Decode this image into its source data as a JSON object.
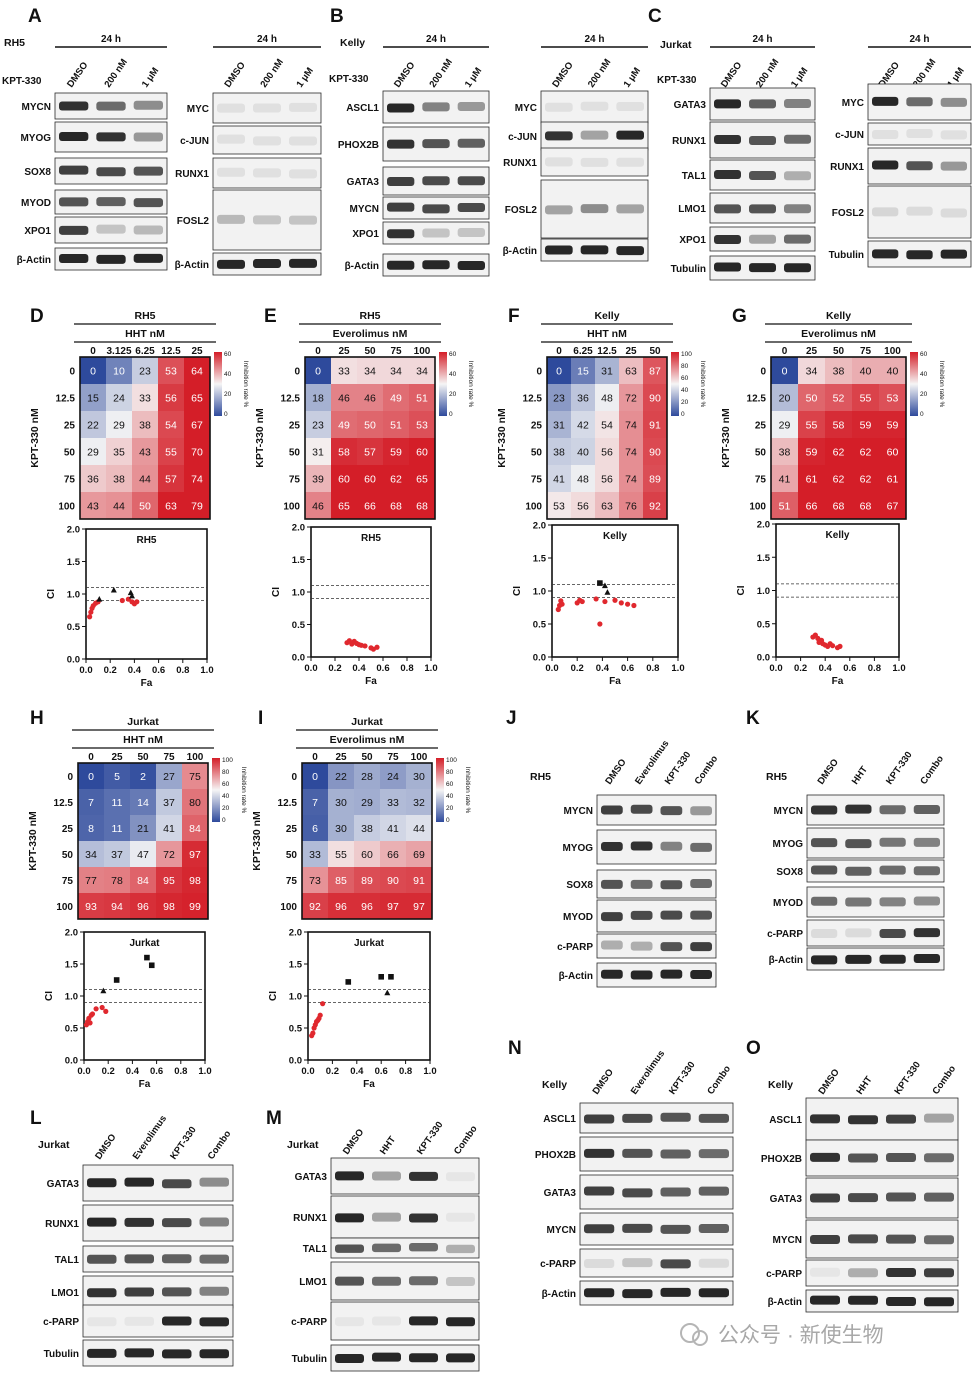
{
  "panel_letters": {
    "A": "A",
    "B": "B",
    "C": "C",
    "D": "D",
    "E": "E",
    "F": "F",
    "G": "G",
    "H": "H",
    "I": "I",
    "J": "J",
    "K": "K",
    "L": "L",
    "M": "M",
    "N": "N",
    "O": "O"
  },
  "common": {
    "kpt": "KPT-330",
    "time": "24 h",
    "conc": [
      "DMSO",
      "200 nM",
      "1 μM"
    ]
  },
  "blots": {
    "A1": {
      "cell": "RH5",
      "rows": [
        "MYCN",
        "MYOG",
        "SOX8",
        "MYOD",
        "XPO1",
        "β-Actin"
      ]
    },
    "A2": {
      "rows": [
        "MYC",
        "c-JUN",
        "RUNX1",
        "FOSL2",
        "β-Actin"
      ]
    },
    "B1": {
      "cell": "Kelly",
      "rows": [
        "ASCL1",
        "PHOX2B",
        "GATA3",
        "MYCN",
        "XPO1",
        "β-Actin"
      ]
    },
    "B2": {
      "rows": [
        "MYC",
        "c-JUN",
        "RUNX1",
        "FOSL2",
        "β-Actin"
      ]
    },
    "C1": {
      "cell": "Jurkat",
      "rows": [
        "GATA3",
        "RUNX1",
        "TAL1",
        "LMO1",
        "XPO1",
        "Tubulin"
      ]
    },
    "C2": {
      "rows": [
        "MYC",
        "c-JUN",
        "RUNX1",
        "FOSL2",
        "Tubulin"
      ]
    },
    "J": {
      "cell": "RH5",
      "cols": [
        "DMSO",
        "Everolimus",
        "KPT-330",
        "Combo"
      ],
      "rows": [
        "MYCN",
        "MYOG",
        "SOX8",
        "MYOD",
        "c-PARP",
        "β-Actin"
      ]
    },
    "K": {
      "cell": "RH5",
      "cols": [
        "DMSO",
        "HHT",
        "KPT-330",
        "Combo"
      ],
      "rows": [
        "MYCN",
        "MYOG",
        "SOX8",
        "MYOD",
        "c-PARP",
        "β-Actin"
      ]
    },
    "L": {
      "cell": "Jurkat",
      "cols": [
        "DMSO",
        "Everolimus",
        "KPT-330",
        "Combo"
      ],
      "rows": [
        "GATA3",
        "RUNX1",
        "TAL1",
        "LMO1",
        "c-PARP",
        "Tubulin"
      ]
    },
    "M": {
      "cell": "Jurkat",
      "cols": [
        "DMSO",
        "HHT",
        "KPT-330",
        "Combo"
      ],
      "rows": [
        "GATA3",
        "RUNX1",
        "TAL1",
        "LMO1",
        "c-PARP",
        "Tubulin"
      ]
    },
    "N": {
      "cell": "Kelly",
      "cols": [
        "DMSO",
        "Everolimus",
        "KPT-330",
        "Combo"
      ],
      "rows": [
        "ASCL1",
        "PHOX2B",
        "GATA3",
        "MYCN",
        "c-PARP",
        "β-Actin"
      ]
    },
    "O": {
      "cell": "Kelly",
      "cols": [
        "DMSO",
        "HHT",
        "KPT-330",
        "Combo"
      ],
      "rows": [
        "ASCL1",
        "PHOX2B",
        "GATA3",
        "MYCN",
        "c-PARP",
        "β-Actin"
      ]
    }
  },
  "chart_data": [
    {
      "id": "D",
      "type": "heatmap",
      "title": "RH5",
      "xlabel": "HHT nM",
      "ylabel": "KPT-330 nM",
      "legend_label": "Inhibition rate %",
      "scale": [
        0,
        60
      ],
      "legend_ticks": [
        "60",
        "40",
        "20",
        "0"
      ],
      "x": [
        "0",
        "3.125",
        "6.25",
        "12.5",
        "25"
      ],
      "y": [
        "0",
        "12.5",
        "25",
        "50",
        "75",
        "100"
      ],
      "values": [
        [
          0,
          10,
          23,
          53,
          64
        ],
        [
          15,
          24,
          33,
          56,
          65
        ],
        [
          22,
          29,
          38,
          54,
          67
        ],
        [
          29,
          35,
          43,
          55,
          70
        ],
        [
          36,
          38,
          44,
          57,
          74
        ],
        [
          43,
          44,
          50,
          63,
          79
        ]
      ]
    },
    {
      "id": "E",
      "type": "heatmap",
      "title": "RH5",
      "xlabel": "Everolimus nM",
      "ylabel": "KPT-330 nM",
      "legend_label": "Inhibition rate %",
      "scale": [
        0,
        60
      ],
      "legend_ticks": [
        "60",
        "40",
        "20",
        "0"
      ],
      "x": [
        "0",
        "25",
        "50",
        "75",
        "100"
      ],
      "y": [
        "0",
        "12.5",
        "25",
        "50",
        "75",
        "100"
      ],
      "values": [
        [
          0,
          33,
          34,
          34,
          34
        ],
        [
          18,
          46,
          46,
          49,
          51
        ],
        [
          23,
          49,
          50,
          51,
          53
        ],
        [
          31,
          58,
          57,
          59,
          60
        ],
        [
          39,
          60,
          60,
          62,
          65
        ],
        [
          46,
          65,
          66,
          68,
          68
        ]
      ]
    },
    {
      "id": "F",
      "type": "heatmap",
      "title": "Kelly",
      "xlabel": "HHT nM",
      "ylabel": "KPT-330 nM",
      "legend_label": "Inhibition rate %",
      "scale": [
        0,
        100
      ],
      "legend_ticks": [
        "100",
        "80",
        "60",
        "40",
        "20",
        "0"
      ],
      "x": [
        "0",
        "6.25",
        "12.5",
        "25",
        "50"
      ],
      "y": [
        "0",
        "12.5",
        "25",
        "50",
        "75",
        "100"
      ],
      "values": [
        [
          0,
          15,
          31,
          63,
          87
        ],
        [
          23,
          36,
          48,
          72,
          90
        ],
        [
          31,
          42,
          54,
          74,
          91
        ],
        [
          38,
          40,
          56,
          74,
          90
        ],
        [
          41,
          48,
          56,
          74,
          89
        ],
        [
          53,
          56,
          63,
          76,
          92
        ]
      ]
    },
    {
      "id": "G",
      "type": "heatmap",
      "title": "Kelly",
      "xlabel": "Everolimus nM",
      "ylabel": "KPT-330 nM",
      "legend_label": "Inhibition rate %",
      "scale": [
        0,
        60
      ],
      "legend_ticks": [
        "60",
        "40",
        "20",
        "0"
      ],
      "x": [
        "0",
        "25",
        "50",
        "75",
        "100"
      ],
      "y": [
        "0",
        "12.5",
        "25",
        "50",
        "75",
        "100"
      ],
      "values": [
        [
          0,
          34,
          38,
          40,
          40
        ],
        [
          20,
          50,
          52,
          55,
          53
        ],
        [
          29,
          55,
          58,
          59,
          59
        ],
        [
          38,
          59,
          62,
          62,
          60
        ],
        [
          41,
          61,
          62,
          62,
          61
        ],
        [
          51,
          66,
          68,
          68,
          67
        ]
      ]
    },
    {
      "id": "H",
      "type": "heatmap",
      "title": "Jurkat",
      "xlabel": "HHT nM",
      "ylabel": "KPT-330 nM",
      "legend_label": "Inhibition rate %",
      "scale": [
        0,
        100
      ],
      "legend_ticks": [
        "100",
        "80",
        "60",
        "40",
        "20",
        "0"
      ],
      "x": [
        "0",
        "25",
        "50",
        "75",
        "100"
      ],
      "y": [
        "0",
        "12.5",
        "25",
        "50",
        "75",
        "100"
      ],
      "values": [
        [
          0,
          5,
          2,
          27,
          75
        ],
        [
          7,
          11,
          14,
          37,
          80
        ],
        [
          8,
          11,
          21,
          41,
          84
        ],
        [
          34,
          37,
          47,
          72,
          97
        ],
        [
          77,
          78,
          84,
          95,
          98
        ],
        [
          93,
          94,
          96,
          98,
          99
        ]
      ]
    },
    {
      "id": "I",
      "type": "heatmap",
      "title": "Jurkat",
      "xlabel": "Everolimus nM",
      "ylabel": "KPT-330 nM",
      "legend_label": "Inhibition rate %",
      "scale": [
        0,
        100
      ],
      "legend_ticks": [
        "100",
        "80",
        "60",
        "40",
        "20",
        "0"
      ],
      "x": [
        "0",
        "25",
        "50",
        "75",
        "100"
      ],
      "y": [
        "0",
        "12.5",
        "25",
        "50",
        "75",
        "100"
      ],
      "values": [
        [
          0,
          22,
          28,
          24,
          30
        ],
        [
          7,
          30,
          29,
          33,
          32
        ],
        [
          6,
          30,
          38,
          41,
          44
        ],
        [
          33,
          55,
          60,
          66,
          69
        ],
        [
          73,
          85,
          89,
          90,
          91
        ],
        [
          92,
          96,
          96,
          97,
          97
        ]
      ]
    },
    {
      "id": "D_ci",
      "type": "scatter",
      "title": "RH5",
      "xlabel": "Fa",
      "ylabel": "CI",
      "xlim": [
        0,
        1
      ],
      "ylim": [
        0,
        2
      ],
      "xticks": [
        "0.0",
        "0.2",
        "0.4",
        "0.6",
        "0.8",
        "1.0"
      ],
      "yticks": [
        "0.0",
        "0.5",
        "1.0",
        "1.5",
        "2.0"
      ],
      "hlines": [
        0.9,
        1.1
      ],
      "series": [
        {
          "name": "circle",
          "points": [
            [
              0.03,
              0.65
            ],
            [
              0.04,
              0.72
            ],
            [
              0.05,
              0.78
            ],
            [
              0.06,
              0.82
            ],
            [
              0.08,
              0.86
            ],
            [
              0.1,
              0.88
            ],
            [
              0.3,
              0.9
            ],
            [
              0.35,
              0.92
            ],
            [
              0.38,
              0.88
            ],
            [
              0.4,
              0.85
            ],
            [
              0.42,
              0.88
            ]
          ]
        },
        {
          "name": "triangle",
          "points": [
            [
              0.11,
              0.92
            ],
            [
              0.23,
              1.06
            ],
            [
              0.37,
              1.02
            ],
            [
              0.38,
              0.97
            ]
          ]
        }
      ]
    },
    {
      "id": "E_ci",
      "type": "scatter",
      "title": "RH5",
      "xlabel": "Fa",
      "ylabel": "CI",
      "xlim": [
        0,
        1
      ],
      "ylim": [
        0,
        2
      ],
      "xticks": [
        "0.0",
        "0.2",
        "0.4",
        "0.6",
        "0.8",
        "1.0"
      ],
      "yticks": [
        "0.0",
        "0.5",
        "1.0",
        "1.5",
        "2.0"
      ],
      "hlines": [
        0.9,
        1.1
      ],
      "series": [
        {
          "name": "circle",
          "points": [
            [
              0.3,
              0.22
            ],
            [
              0.32,
              0.25
            ],
            [
              0.34,
              0.2
            ],
            [
              0.36,
              0.24
            ],
            [
              0.38,
              0.21
            ],
            [
              0.4,
              0.19
            ],
            [
              0.42,
              0.18
            ],
            [
              0.45,
              0.17
            ],
            [
              0.5,
              0.14
            ],
            [
              0.52,
              0.12
            ],
            [
              0.55,
              0.15
            ]
          ]
        }
      ]
    },
    {
      "id": "F_ci",
      "type": "scatter",
      "title": "Kelly",
      "xlabel": "Fa",
      "ylabel": "CI",
      "xlim": [
        0,
        1
      ],
      "ylim": [
        0,
        2
      ],
      "xticks": [
        "0.0",
        "0.2",
        "0.4",
        "0.6",
        "0.8",
        "1.0"
      ],
      "yticks": [
        "0.0",
        "0.5",
        "1.0",
        "1.5",
        "2.0"
      ],
      "hlines": [
        0.9,
        1.1
      ],
      "series": [
        {
          "name": "circle",
          "points": [
            [
              0.05,
              0.72
            ],
            [
              0.06,
              0.78
            ],
            [
              0.07,
              0.85
            ],
            [
              0.08,
              0.8
            ],
            [
              0.2,
              0.82
            ],
            [
              0.22,
              0.86
            ],
            [
              0.24,
              0.84
            ],
            [
              0.35,
              0.88
            ],
            [
              0.38,
              0.5
            ],
            [
              0.42,
              0.84
            ],
            [
              0.5,
              0.86
            ],
            [
              0.55,
              0.82
            ],
            [
              0.6,
              0.8
            ],
            [
              0.65,
              0.78
            ]
          ]
        },
        {
          "name": "triangle",
          "points": [
            [
              0.42,
              1.08
            ],
            [
              0.44,
              0.98
            ]
          ]
        },
        {
          "name": "square",
          "points": [
            [
              0.38,
              1.12
            ]
          ]
        }
      ]
    },
    {
      "id": "G_ci",
      "type": "scatter",
      "title": "Kelly",
      "xlabel": "Fa",
      "ylabel": "CI",
      "xlim": [
        0,
        1
      ],
      "ylim": [
        0,
        2
      ],
      "xticks": [
        "0.0",
        "0.2",
        "0.4",
        "0.6",
        "0.8",
        "1.0"
      ],
      "yticks": [
        "0.0",
        "0.5",
        "1.0",
        "1.5",
        "2.0"
      ],
      "hlines": [
        0.9,
        1.1
      ],
      "series": [
        {
          "name": "circle",
          "points": [
            [
              0.3,
              0.3
            ],
            [
              0.32,
              0.33
            ],
            [
              0.34,
              0.28
            ],
            [
              0.35,
              0.22
            ],
            [
              0.37,
              0.25
            ],
            [
              0.38,
              0.2
            ],
            [
              0.4,
              0.18
            ],
            [
              0.42,
              0.16
            ],
            [
              0.44,
              0.2
            ],
            [
              0.46,
              0.17
            ],
            [
              0.5,
              0.14
            ],
            [
              0.52,
              0.16
            ]
          ]
        }
      ]
    },
    {
      "id": "H_ci",
      "type": "scatter",
      "title": "Jurkat",
      "xlabel": "Fa",
      "ylabel": "CI",
      "xlim": [
        0,
        1
      ],
      "ylim": [
        0,
        2
      ],
      "xticks": [
        "0.0",
        "0.2",
        "0.4",
        "0.6",
        "0.8",
        "1.0"
      ],
      "yticks": [
        "0.0",
        "0.5",
        "1.0",
        "1.5",
        "2.0"
      ],
      "hlines": [
        0.9,
        1.1
      ],
      "series": [
        {
          "name": "circle",
          "points": [
            [
              0.02,
              0.55
            ],
            [
              0.03,
              0.6
            ],
            [
              0.04,
              0.65
            ],
            [
              0.05,
              0.58
            ],
            [
              0.06,
              0.7
            ],
            [
              0.07,
              0.72
            ],
            [
              0.1,
              0.8
            ],
            [
              0.15,
              0.82
            ],
            [
              0.18,
              0.76
            ]
          ]
        },
        {
          "name": "triangle",
          "points": [
            [
              0.16,
              1.08
            ]
          ]
        },
        {
          "name": "square",
          "points": [
            [
              0.27,
              1.25
            ],
            [
              0.52,
              1.6
            ],
            [
              0.56,
              1.48
            ]
          ]
        }
      ]
    },
    {
      "id": "I_ci",
      "type": "scatter",
      "title": "Jurkat",
      "xlabel": "Fa",
      "ylabel": "CI",
      "xlim": [
        0,
        1
      ],
      "ylim": [
        0,
        2
      ],
      "xticks": [
        "0.0",
        "0.2",
        "0.4",
        "0.6",
        "0.8",
        "1.0"
      ],
      "yticks": [
        "0.0",
        "0.5",
        "1.0",
        "1.5",
        "2.0"
      ],
      "hlines": [
        0.9,
        1.1
      ],
      "series": [
        {
          "name": "circle",
          "points": [
            [
              0.03,
              0.38
            ],
            [
              0.04,
              0.42
            ],
            [
              0.05,
              0.5
            ],
            [
              0.06,
              0.55
            ],
            [
              0.07,
              0.6
            ],
            [
              0.08,
              0.62
            ],
            [
              0.09,
              0.65
            ],
            [
              0.1,
              0.7
            ],
            [
              0.12,
              0.88
            ]
          ]
        },
        {
          "name": "triangle",
          "points": [
            [
              0.65,
              1.05
            ]
          ]
        },
        {
          "name": "square",
          "points": [
            [
              0.33,
              1.22
            ],
            [
              0.6,
              1.3
            ],
            [
              0.68,
              1.3
            ]
          ]
        }
      ]
    }
  ],
  "watermark": "公众号 · 新使生物"
}
